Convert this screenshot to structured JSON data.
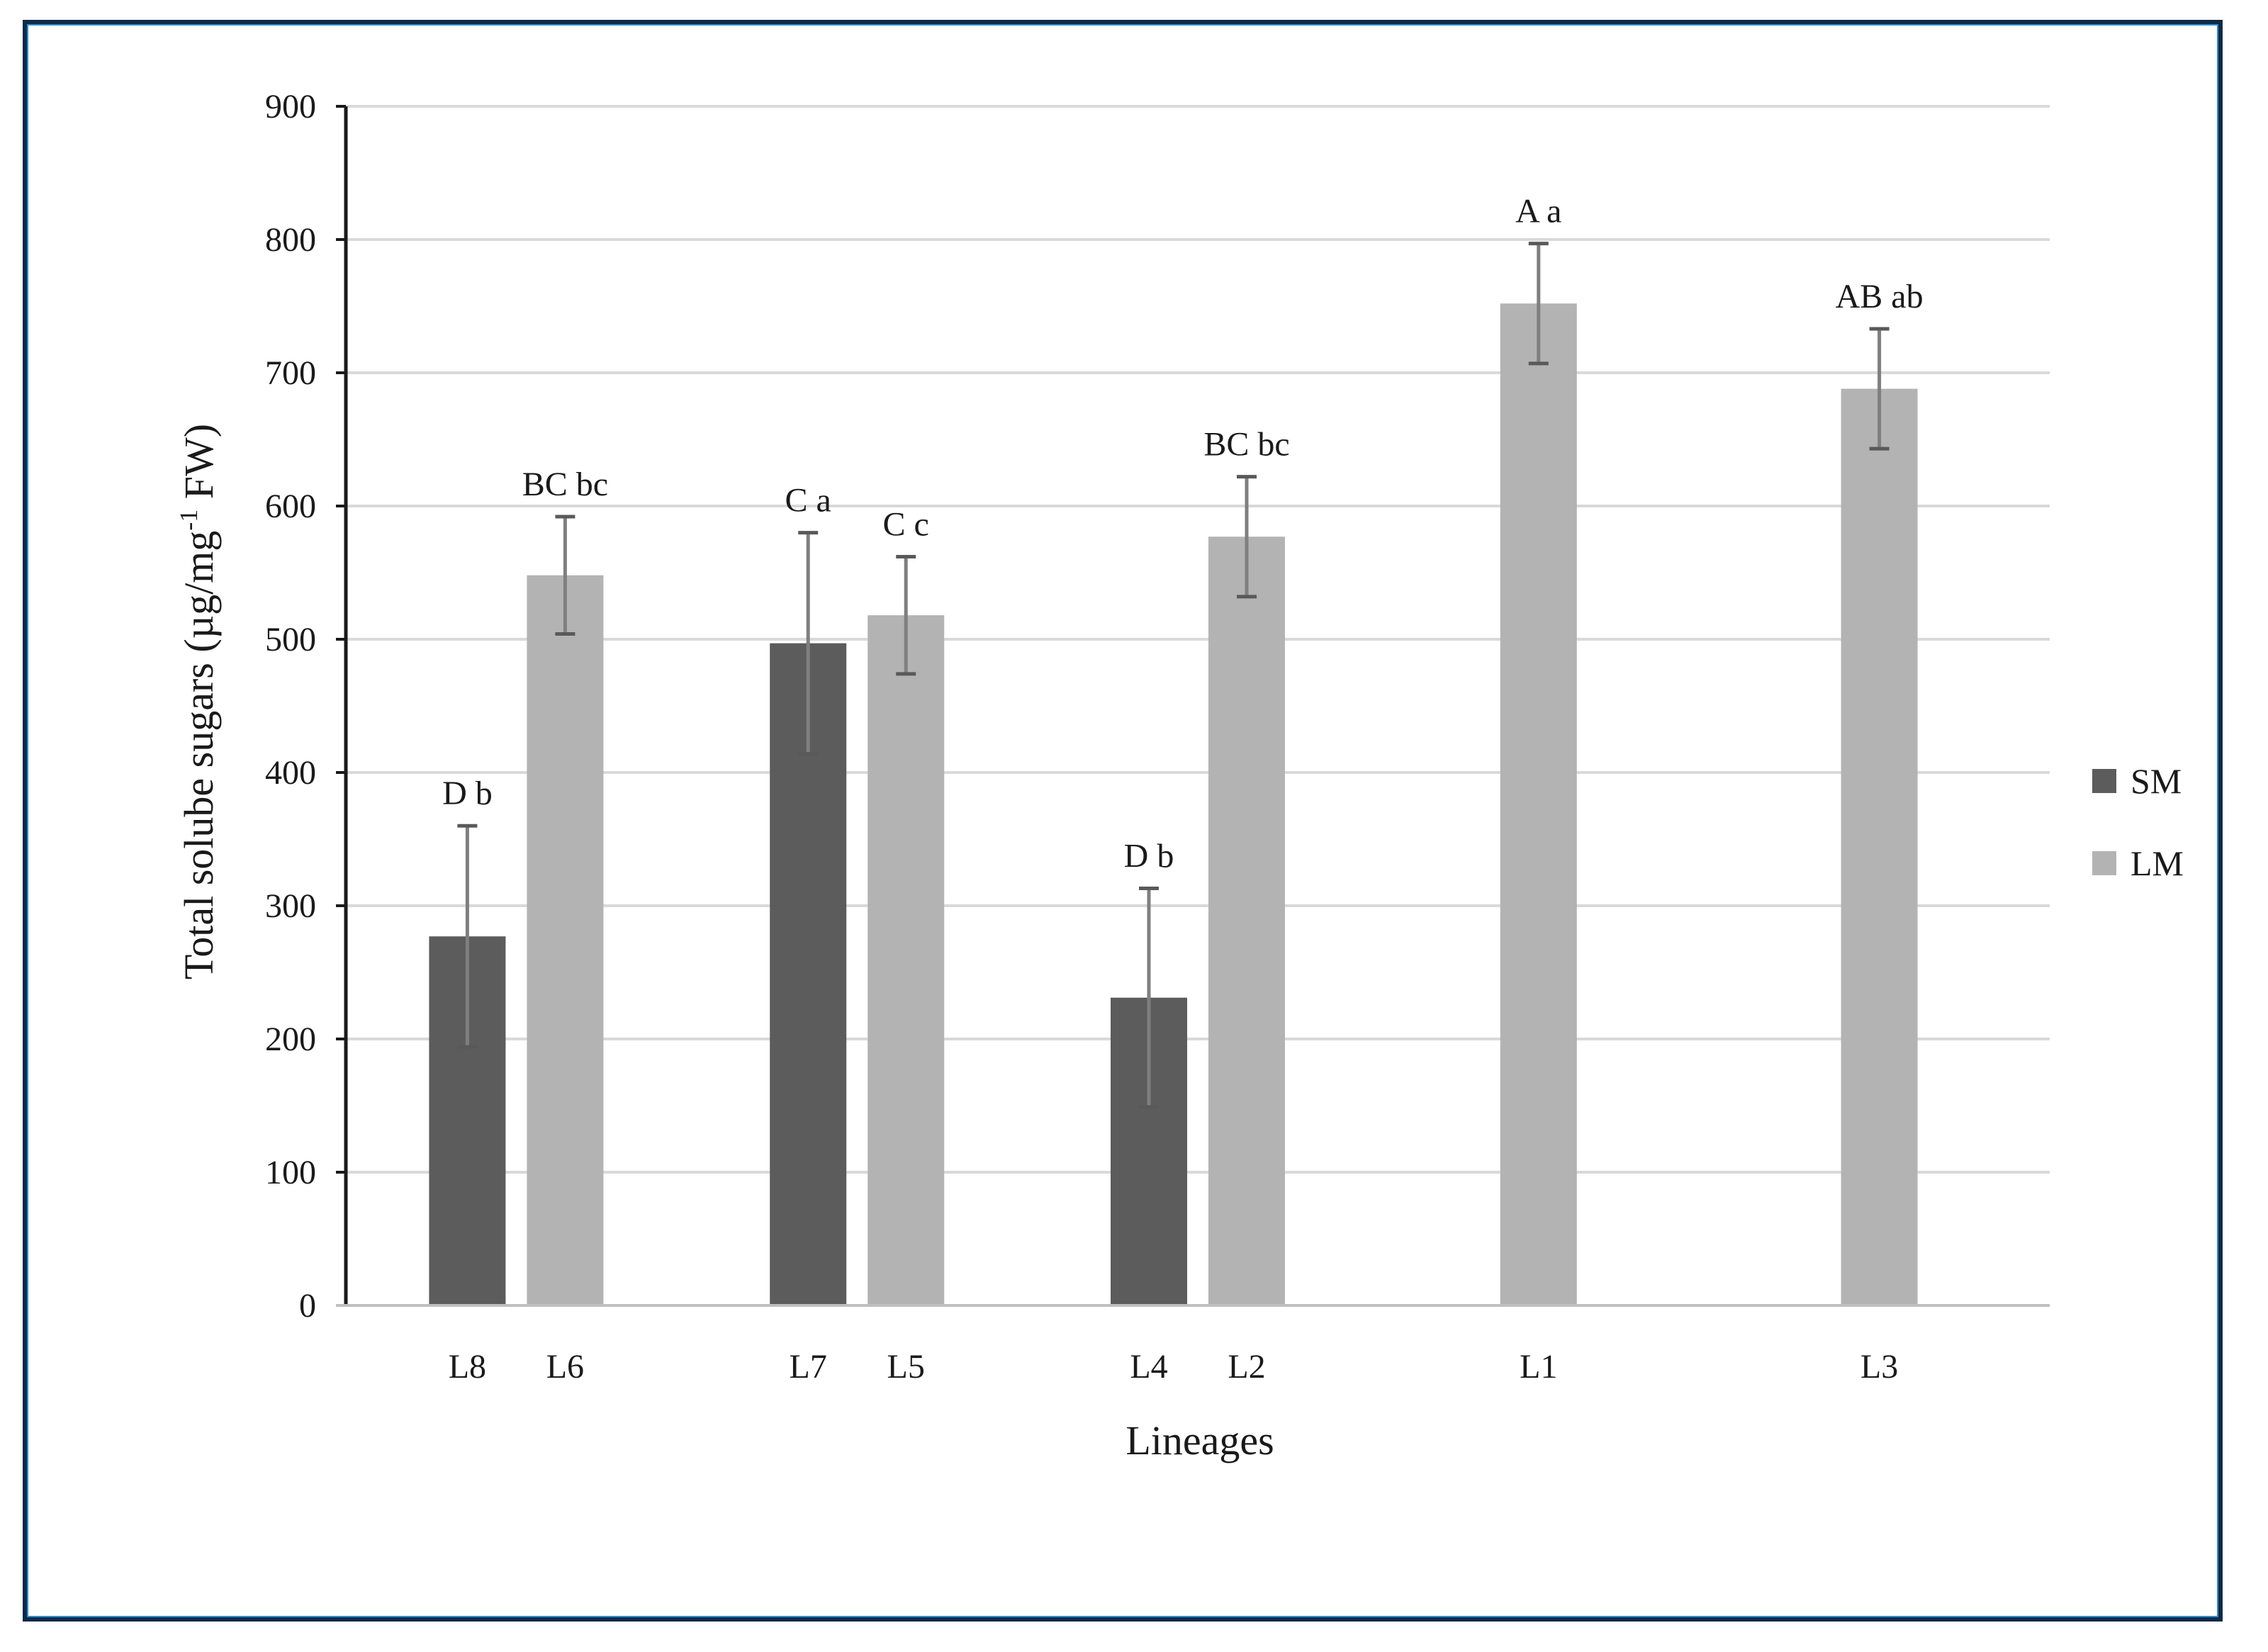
{
  "chart_data": {
    "type": "bar",
    "xlabel": "Lineages",
    "ylabel": "Total solube sugars (µg/mg",
    "ylabel_sup": "-1",
    "ylabel_tail": " FW)",
    "ylim": [
      0,
      900
    ],
    "yticks": [
      0,
      100,
      200,
      300,
      400,
      500,
      600,
      700,
      800,
      900
    ],
    "grid": true,
    "legend_position": "right",
    "groups": [
      {
        "bars": [
          {
            "label": "L8",
            "series": "SM",
            "value": 277,
            "err": 83,
            "annotation": "D b"
          },
          {
            "label": "L6",
            "series": "LM",
            "value": 548,
            "err": 44,
            "annotation": "BC bc"
          }
        ]
      },
      {
        "bars": [
          {
            "label": "L7",
            "series": "SM",
            "value": 497,
            "err": 83,
            "annotation": "C a"
          },
          {
            "label": "L5",
            "series": "LM",
            "value": 518,
            "err": 44,
            "annotation": "C c"
          }
        ]
      },
      {
        "bars": [
          {
            "label": "L4",
            "series": "SM",
            "value": 231,
            "err": 82,
            "annotation": "D b"
          },
          {
            "label": "L2",
            "series": "LM",
            "value": 577,
            "err": 45,
            "annotation": "BC bc"
          }
        ]
      },
      {
        "bars": [
          {
            "label": "L1",
            "series": "LM",
            "value": 752,
            "err": 45,
            "annotation": "A a"
          }
        ]
      },
      {
        "bars": [
          {
            "label": "L3",
            "series": "LM",
            "value": 688,
            "err": 45,
            "annotation": "AB ab"
          }
        ]
      }
    ],
    "series": [
      {
        "name": "SM",
        "color": "#5c5c5c"
      },
      {
        "name": "LM",
        "color": "#b3b3b3"
      }
    ]
  }
}
